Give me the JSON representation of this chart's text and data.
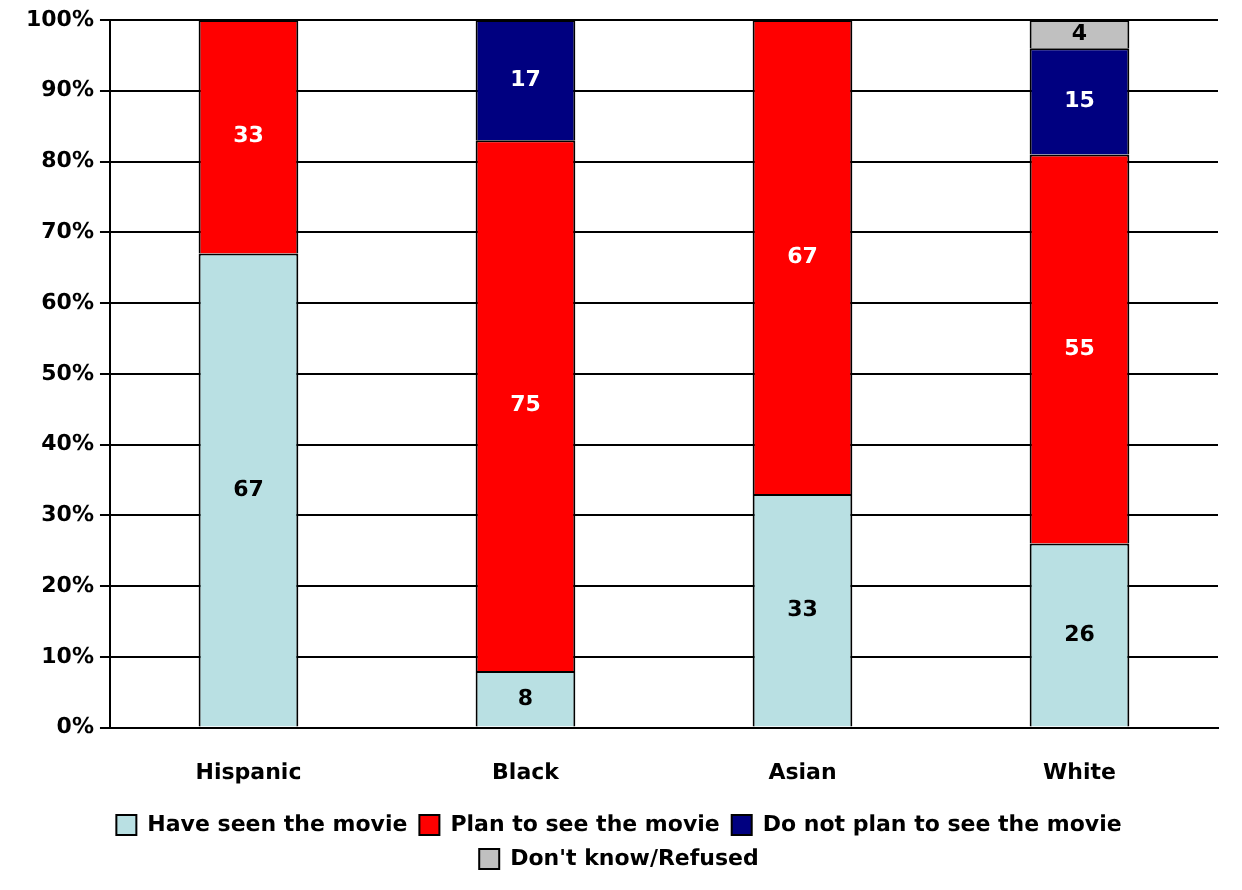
{
  "chart_data": {
    "type": "bar",
    "stacked": true,
    "categories": [
      "Hispanic",
      "Black",
      "Asian",
      "White"
    ],
    "series": [
      {
        "name": "Have seen the movie",
        "color": "#b9e0e3",
        "values": [
          67,
          8,
          33,
          26
        ],
        "value_labels": [
          "67",
          "8",
          "33",
          "26"
        ]
      },
      {
        "name": "Plan to see the movie",
        "color": "#ff0000",
        "values": [
          33,
          75,
          67,
          55
        ],
        "value_labels": [
          "33",
          "75",
          "67",
          "55"
        ]
      },
      {
        "name": "Do not plan to see the movie",
        "color": "#000080",
        "values": [
          0,
          17,
          0,
          15
        ],
        "value_labels": [
          null,
          "17",
          null,
          "15"
        ]
      },
      {
        "name": "Don't know/Refused",
        "color": "#c0c0c0",
        "values": [
          0,
          0,
          0,
          4
        ],
        "value_labels": [
          null,
          null,
          null,
          "4"
        ]
      }
    ],
    "ylim": [
      0,
      100
    ],
    "yticks": [
      {
        "value": 0,
        "label": "0%"
      },
      {
        "value": 10,
        "label": "10%"
      },
      {
        "value": 20,
        "label": "20%"
      },
      {
        "value": 30,
        "label": "30%"
      },
      {
        "value": 40,
        "label": "40%"
      },
      {
        "value": 50,
        "label": "50%"
      },
      {
        "value": 60,
        "label": "60%"
      },
      {
        "value": 70,
        "label": "70%"
      },
      {
        "value": 80,
        "label": "80%"
      },
      {
        "value": 90,
        "label": "90%"
      },
      {
        "value": 100,
        "label": "100%"
      }
    ],
    "grid": "y",
    "legend": "bottom"
  }
}
